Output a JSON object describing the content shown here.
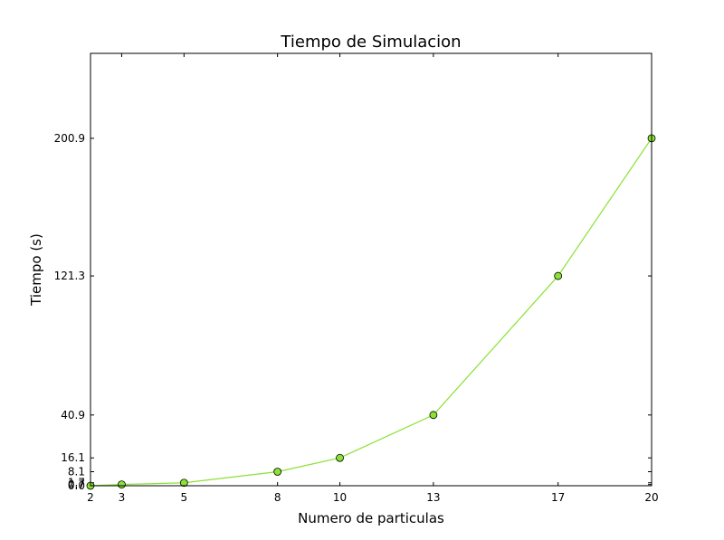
{
  "chart_data": {
    "type": "line",
    "title": "Tiempo de Simulacion",
    "xlabel": "Numero de particulas",
    "ylabel": "Tiempo (s)",
    "x": [
      2,
      3,
      5,
      8,
      10,
      13,
      17,
      20
    ],
    "series": [
      {
        "values": [
          0.0,
          0.7,
          1.7,
          8.1,
          16.1,
          40.9,
          121.3,
          200.9
        ],
        "color": "#8ae234"
      }
    ],
    "xticks": [
      2,
      3,
      5,
      8,
      10,
      13,
      17,
      20
    ],
    "yticks": [
      0.0,
      0.7,
      1.7,
      8.1,
      16.1,
      40.9,
      121.3,
      200.9
    ],
    "ytick_labels": [
      "0.0",
      "0.7",
      "1.7",
      "8.1",
      "16.1",
      "40.9",
      "121.3",
      "200.9"
    ],
    "xlim": [
      2,
      20
    ],
    "ylim": [
      0,
      250
    ],
    "grid": false,
    "marker": "circle"
  }
}
